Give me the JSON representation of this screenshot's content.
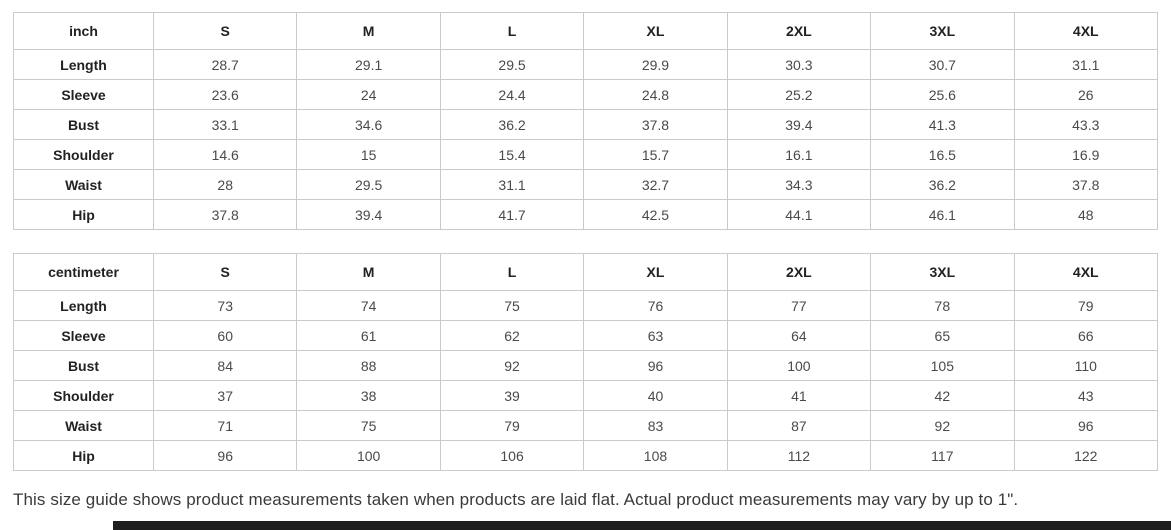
{
  "tables": [
    {
      "unit": "inch",
      "sizes": [
        "S",
        "M",
        "L",
        "XL",
        "2XL",
        "3XL",
        "4XL"
      ],
      "rows": [
        {
          "label": "Length",
          "values": [
            "28.7",
            "29.1",
            "29.5",
            "29.9",
            "30.3",
            "30.7",
            "31.1"
          ]
        },
        {
          "label": "Sleeve",
          "values": [
            "23.6",
            "24",
            "24.4",
            "24.8",
            "25.2",
            "25.6",
            "26"
          ]
        },
        {
          "label": "Bust",
          "values": [
            "33.1",
            "34.6",
            "36.2",
            "37.8",
            "39.4",
            "41.3",
            "43.3"
          ]
        },
        {
          "label": "Shoulder",
          "values": [
            "14.6",
            "15",
            "15.4",
            "15.7",
            "16.1",
            "16.5",
            "16.9"
          ]
        },
        {
          "label": "Waist",
          "values": [
            "28",
            "29.5",
            "31.1",
            "32.7",
            "34.3",
            "36.2",
            "37.8"
          ]
        },
        {
          "label": "Hip",
          "values": [
            "37.8",
            "39.4",
            "41.7",
            "42.5",
            "44.1",
            "46.1",
            "48"
          ]
        }
      ]
    },
    {
      "unit": "centimeter",
      "sizes": [
        "S",
        "M",
        "L",
        "XL",
        "2XL",
        "3XL",
        "4XL"
      ],
      "rows": [
        {
          "label": "Length",
          "values": [
            "73",
            "74",
            "75",
            "76",
            "77",
            "78",
            "79"
          ]
        },
        {
          "label": "Sleeve",
          "values": [
            "60",
            "61",
            "62",
            "63",
            "64",
            "65",
            "66"
          ]
        },
        {
          "label": "Bust",
          "values": [
            "84",
            "88",
            "92",
            "96",
            "100",
            "105",
            "110"
          ]
        },
        {
          "label": "Shoulder",
          "values": [
            "37",
            "38",
            "39",
            "40",
            "41",
            "42",
            "43"
          ]
        },
        {
          "label": "Waist",
          "values": [
            "71",
            "75",
            "79",
            "83",
            "87",
            "92",
            "96"
          ]
        },
        {
          "label": "Hip",
          "values": [
            "96",
            "100",
            "106",
            "108",
            "112",
            "117",
            "122"
          ]
        }
      ]
    }
  ],
  "footnote": "This size guide shows product measurements taken when products are laid flat. Actual product measurements may vary by up to 1\".",
  "colors": {
    "background": "#ffffff",
    "table_border": "#cbcbcb",
    "header_text": "#222222",
    "value_text": "#4a4a4a",
    "footnote_text": "#3a3a3a",
    "bottom_bar": "#1e1e1e"
  }
}
